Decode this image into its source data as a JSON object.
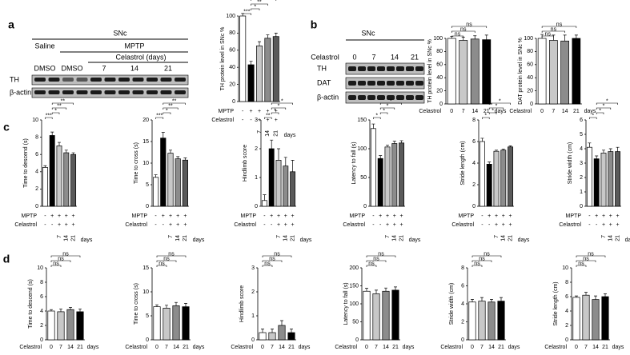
{
  "panel_labels": [
    "a",
    "b",
    "c",
    "d"
  ],
  "blot_a": {
    "header": [
      "Saline",
      "SNc",
      "MPTP",
      "DMSO",
      "DMSO",
      "Celastrol (days)",
      "7",
      "14",
      "21"
    ],
    "rows": [
      "TH",
      "β-actin"
    ]
  },
  "blot_b": {
    "header": [
      "SNc",
      "Celastrol",
      "0",
      "7",
      "14",
      "21"
    ],
    "rows": [
      "TH",
      "DAT",
      "β-actin"
    ]
  },
  "chart_data": [
    {
      "type": "bar",
      "ylabel": "TH protein level in SNc %",
      "values": [
        100,
        43,
        65,
        74,
        76
      ],
      "errors": [
        3,
        4,
        5,
        4,
        4
      ],
      "colors": [
        "#ffffff",
        "#000000",
        "#c8c8c8",
        "#8c8c8c",
        "#5a5a5a"
      ],
      "ylim": [
        0,
        100
      ],
      "yticks": [
        0,
        20,
        40,
        60,
        80,
        100
      ],
      "categories": [
        null,
        null,
        "7",
        "14",
        "21"
      ],
      "x_unit": "days",
      "conditions": [
        {
          "name": "MPTP",
          "values": [
            "-",
            "+",
            "+",
            "+",
            "+"
          ]
        },
        {
          "name": "Celastrol",
          "values": [
            "-",
            "-",
            "+",
            "+",
            "+"
          ]
        }
      ],
      "brackets": [
        {
          "from": 0,
          "to": 1,
          "label": "***"
        },
        {
          "from": 1,
          "to": 2,
          "label": "*"
        },
        {
          "from": 1,
          "to": 3,
          "label": "**"
        },
        {
          "from": 1,
          "to": 4,
          "label": "**"
        }
      ]
    },
    {
      "type": "bar",
      "ylabel": "TH protein level in SNc %",
      "values": [
        100,
        97,
        99,
        98
      ],
      "errors": [
        3,
        5,
        5,
        7
      ],
      "colors": [
        "#ffffff",
        "#c8c8c8",
        "#8c8c8c",
        "#000000"
      ],
      "ylim": [
        0,
        100
      ],
      "yticks": [
        0,
        20,
        40,
        60,
        80,
        100
      ],
      "categories": [
        "0",
        "7",
        "14",
        "21"
      ],
      "xlabel": "Celastrol",
      "x_unit": "days",
      "brackets": [
        {
          "from": 0,
          "to": 1,
          "label": "ns"
        },
        {
          "from": 0,
          "to": 2,
          "label": "ns"
        },
        {
          "from": 0,
          "to": 3,
          "label": "ns"
        }
      ]
    },
    {
      "type": "bar",
      "ylabel": "DAT protein level in SNc %",
      "values": [
        100,
        97,
        96,
        100
      ],
      "errors": [
        6,
        8,
        9,
        5
      ],
      "colors": [
        "#ffffff",
        "#c8c8c8",
        "#8c8c8c",
        "#000000"
      ],
      "ylim": [
        0,
        100
      ],
      "yticks": [
        0,
        20,
        40,
        60,
        80,
        100
      ],
      "categories": [
        "0",
        "7",
        "14",
        "21"
      ],
      "xlabel": "Celastrol",
      "x_unit": "days",
      "brackets": [
        {
          "from": 0,
          "to": 1,
          "label": "ns"
        },
        {
          "from": 0,
          "to": 2,
          "label": "ns"
        },
        {
          "from": 0,
          "to": 3,
          "label": "ns"
        }
      ]
    },
    {
      "type": "bar",
      "ylabel": "Time to descend (s)",
      "values": [
        4.5,
        8.2,
        7.0,
        6.2,
        6.0
      ],
      "errors": [
        0.2,
        0.4,
        0.4,
        0.3,
        0.2
      ],
      "colors": [
        "#ffffff",
        "#000000",
        "#c8c8c8",
        "#8c8c8c",
        "#5a5a5a"
      ],
      "ylim": [
        0,
        10
      ],
      "yticks": [
        0,
        2,
        4,
        6,
        8,
        10
      ],
      "categories": [
        null,
        null,
        "7",
        "14",
        "21"
      ],
      "x_unit": "days",
      "conditions": [
        {
          "name": "MPTP",
          "values": [
            "-",
            "+",
            "+",
            "+",
            "+"
          ]
        },
        {
          "name": "Celastrol",
          "values": [
            "-",
            "-",
            "+",
            "+",
            "+"
          ]
        }
      ],
      "brackets": [
        {
          "from": 0,
          "to": 1,
          "label": "***"
        },
        {
          "from": 1,
          "to": 2,
          "label": "*"
        },
        {
          "from": 1,
          "to": 3,
          "label": "**"
        },
        {
          "from": 1,
          "to": 4,
          "label": "**"
        }
      ]
    },
    {
      "type": "bar",
      "ylabel": "Time to cross (s)",
      "values": [
        6.7,
        15.8,
        12.3,
        11.0,
        10.7
      ],
      "errors": [
        0.6,
        1.3,
        0.7,
        0.5,
        0.5
      ],
      "colors": [
        "#ffffff",
        "#000000",
        "#c8c8c8",
        "#8c8c8c",
        "#5a5a5a"
      ],
      "ylim": [
        0,
        20
      ],
      "yticks": [
        0,
        5,
        10,
        15,
        20
      ],
      "categories": [
        null,
        null,
        "7",
        "14",
        "21"
      ],
      "x_unit": "days",
      "conditions": [
        {
          "name": "MPTP",
          "values": [
            "-",
            "+",
            "+",
            "+",
            "+"
          ]
        },
        {
          "name": "Celastrol",
          "values": [
            "-",
            "-",
            "+",
            "+",
            "+"
          ]
        }
      ],
      "brackets": [
        {
          "from": 0,
          "to": 1,
          "label": "***"
        },
        {
          "from": 1,
          "to": 2,
          "label": "*"
        },
        {
          "from": 1,
          "to": 3,
          "label": "**"
        },
        {
          "from": 1,
          "to": 4,
          "label": "**"
        }
      ]
    },
    {
      "type": "bar",
      "ylabel": "Hindlimb score",
      "values": [
        0.2,
        2.0,
        1.6,
        1.4,
        1.2
      ],
      "errors": [
        0.2,
        0.3,
        0.4,
        0.3,
        0.4
      ],
      "colors": [
        "#ffffff",
        "#000000",
        "#c8c8c8",
        "#8c8c8c",
        "#5a5a5a"
      ],
      "ylim": [
        0,
        3
      ],
      "yticks": [
        0,
        1,
        2,
        3
      ],
      "categories": [
        null,
        null,
        "7",
        "14",
        "21"
      ],
      "x_unit": "days",
      "conditions": [
        {
          "name": "MPTP",
          "values": [
            "-",
            "+",
            "+",
            "+",
            "+"
          ]
        },
        {
          "name": "Celastrol",
          "values": [
            "-",
            "-",
            "+",
            "+",
            "+"
          ]
        }
      ],
      "brackets": [
        {
          "from": 0,
          "to": 1,
          "label": "**"
        },
        {
          "from": 1,
          "to": 2,
          "label": "*"
        },
        {
          "from": 1,
          "to": 3,
          "label": "*"
        },
        {
          "from": 1,
          "to": 4,
          "label": "*"
        }
      ]
    },
    {
      "type": "bar",
      "ylabel": "Latency to fall (s)",
      "values": [
        135,
        83,
        103,
        109,
        110
      ],
      "errors": [
        8,
        5,
        3,
        4,
        4
      ],
      "colors": [
        "#ffffff",
        "#000000",
        "#c8c8c8",
        "#8c8c8c",
        "#5a5a5a"
      ],
      "ylim": [
        0,
        150
      ],
      "yticks": [
        0,
        50,
        100,
        150
      ],
      "categories": [
        null,
        null,
        "7",
        "14",
        "21"
      ],
      "x_unit": "days",
      "conditions": [
        {
          "name": "MPTP",
          "values": [
            "-",
            "+",
            "+",
            "+",
            "+"
          ]
        },
        {
          "name": "Celastrol",
          "values": [
            "-",
            "-",
            "+",
            "+",
            "+"
          ]
        }
      ],
      "brackets": [
        {
          "from": 0,
          "to": 1,
          "label": "*"
        },
        {
          "from": 1,
          "to": 2,
          "label": "*"
        },
        {
          "from": 1,
          "to": 3,
          "label": "*"
        },
        {
          "from": 1,
          "to": 4,
          "label": "*"
        }
      ]
    },
    {
      "type": "bar",
      "ylabel": "Stride length (cm)",
      "values": [
        6.0,
        3.9,
        5.1,
        5.2,
        5.5
      ],
      "errors": [
        0.3,
        0.2,
        0.1,
        0.1,
        0.1
      ],
      "colors": [
        "#ffffff",
        "#000000",
        "#c8c8c8",
        "#8c8c8c",
        "#5a5a5a"
      ],
      "ylim": [
        0,
        8
      ],
      "yticks": [
        0,
        2,
        4,
        6,
        8
      ],
      "categories": [
        null,
        null,
        "7",
        "14",
        "21"
      ],
      "x_unit": "days",
      "conditions": [
        {
          "name": "MPTP",
          "values": [
            "-",
            "+",
            "+",
            "+",
            "+"
          ]
        },
        {
          "name": "Celastrol",
          "values": [
            "-",
            "-",
            "+",
            "+",
            "+"
          ]
        }
      ],
      "brackets": [
        {
          "from": 0,
          "to": 1,
          "label": "*"
        },
        {
          "from": 1,
          "to": 2,
          "label": "*"
        },
        {
          "from": 1,
          "to": 3,
          "label": "*"
        },
        {
          "from": 1,
          "to": 4,
          "label": "*"
        }
      ]
    },
    {
      "type": "bar",
      "ylabel": "Stride width (cm)",
      "values": [
        4.1,
        3.3,
        3.7,
        3.8,
        3.8
      ],
      "errors": [
        0.3,
        0.2,
        0.2,
        0.2,
        0.3
      ],
      "colors": [
        "#ffffff",
        "#000000",
        "#c8c8c8",
        "#8c8c8c",
        "#5a5a5a"
      ],
      "ylim": [
        0,
        6
      ],
      "yticks": [
        0,
        1,
        2,
        3,
        4,
        5,
        6
      ],
      "categories": [
        null,
        null,
        "7",
        "14",
        "21"
      ],
      "x_unit": "days",
      "conditions": [
        {
          "name": "MPTP",
          "values": [
            "-",
            "+",
            "+",
            "+",
            "+"
          ]
        },
        {
          "name": "Celastrol",
          "values": [
            "-",
            "-",
            "+",
            "+",
            "+"
          ]
        }
      ],
      "brackets": [
        {
          "from": 0,
          "to": 1,
          "label": "*"
        },
        {
          "from": 1,
          "to": 2,
          "label": "*"
        },
        {
          "from": 1,
          "to": 3,
          "label": "*"
        },
        {
          "from": 1,
          "to": 4,
          "label": "*"
        }
      ]
    },
    {
      "type": "bar",
      "ylabel": "Time to descend (s)",
      "values": [
        4.0,
        3.9,
        4.2,
        3.9
      ],
      "errors": [
        0.2,
        0.4,
        0.3,
        0.4
      ],
      "colors": [
        "#ffffff",
        "#c8c8c8",
        "#8c8c8c",
        "#000000"
      ],
      "ylim": [
        0,
        10
      ],
      "yticks": [
        0,
        2,
        4,
        6,
        8,
        10
      ],
      "categories": [
        "0",
        "7",
        "14",
        "21"
      ],
      "xlabel": "Celastrol",
      "x_unit": "days",
      "brackets": [
        {
          "from": 0,
          "to": 1,
          "label": "ns"
        },
        {
          "from": 0,
          "to": 2,
          "label": "ns"
        },
        {
          "from": 0,
          "to": 3,
          "label": "ns"
        }
      ]
    },
    {
      "type": "bar",
      "ylabel": "Time to cross (s)",
      "values": [
        6.9,
        6.6,
        7.1,
        6.9
      ],
      "errors": [
        0.4,
        0.6,
        0.7,
        0.7
      ],
      "colors": [
        "#ffffff",
        "#c8c8c8",
        "#8c8c8c",
        "#000000"
      ],
      "ylim": [
        0,
        15
      ],
      "yticks": [
        0,
        5,
        10,
        15
      ],
      "categories": [
        "0",
        "7",
        "14",
        "21"
      ],
      "xlabel": "Celastrol",
      "x_unit": "days",
      "brackets": [
        {
          "from": 0,
          "to": 1,
          "label": "ns"
        },
        {
          "from": 0,
          "to": 2,
          "label": "ns"
        },
        {
          "from": 0,
          "to": 3,
          "label": "ns"
        }
      ]
    },
    {
      "type": "bar",
      "ylabel": "Hindlimb score",
      "values": [
        0.3,
        0.3,
        0.6,
        0.3
      ],
      "errors": [
        0.15,
        0.15,
        0.2,
        0.15
      ],
      "colors": [
        "#ffffff",
        "#c8c8c8",
        "#8c8c8c",
        "#000000"
      ],
      "ylim": [
        0,
        3
      ],
      "yticks": [
        0,
        1,
        2,
        3
      ],
      "categories": [
        "0",
        "7",
        "14",
        "21"
      ],
      "xlabel": "Celastrol",
      "x_unit": "days",
      "brackets": [
        {
          "from": 0,
          "to": 1,
          "label": "ns"
        },
        {
          "from": 0,
          "to": 2,
          "label": "ns"
        },
        {
          "from": 0,
          "to": 3,
          "label": "ns"
        }
      ]
    },
    {
      "type": "bar",
      "ylabel": "Latency to fall (s)",
      "values": [
        135,
        128,
        135,
        138
      ],
      "errors": [
        8,
        10,
        9,
        9
      ],
      "colors": [
        "#ffffff",
        "#c8c8c8",
        "#8c8c8c",
        "#000000"
      ],
      "ylim": [
        0,
        200
      ],
      "yticks": [
        0,
        50,
        100,
        150,
        200
      ],
      "categories": [
        "0",
        "7",
        "14",
        "21"
      ],
      "xlabel": "Celastrol",
      "x_unit": "days",
      "brackets": [
        {
          "from": 0,
          "to": 1,
          "label": "ns"
        },
        {
          "from": 0,
          "to": 2,
          "label": "ns"
        },
        {
          "from": 0,
          "to": 3,
          "label": "ns"
        }
      ]
    },
    {
      "type": "bar",
      "ylabel": "Stride width (cm)",
      "values": [
        4.2,
        4.3,
        4.2,
        4.3
      ],
      "errors": [
        0.3,
        0.4,
        0.3,
        0.4
      ],
      "colors": [
        "#ffffff",
        "#c8c8c8",
        "#8c8c8c",
        "#000000"
      ],
      "ylim": [
        0,
        8
      ],
      "yticks": [
        0,
        2,
        4,
        6,
        8
      ],
      "categories": [
        "0",
        "7",
        "14",
        "21"
      ],
      "xlabel": "Celastrol",
      "x_unit": "days",
      "brackets": [
        {
          "from": 0,
          "to": 1,
          "label": "ns"
        },
        {
          "from": 0,
          "to": 2,
          "label": "ns"
        },
        {
          "from": 0,
          "to": 3,
          "label": "ns"
        }
      ]
    },
    {
      "type": "bar",
      "ylabel": "Stride length (cm)",
      "values": [
        5.9,
        6.2,
        5.6,
        6.0
      ],
      "errors": [
        0.2,
        0.4,
        0.5,
        0.4
      ],
      "colors": [
        "#ffffff",
        "#c8c8c8",
        "#8c8c8c",
        "#000000"
      ],
      "ylim": [
        0,
        10
      ],
      "yticks": [
        0,
        2,
        4,
        6,
        8,
        10
      ],
      "categories": [
        "0",
        "7",
        "14",
        "21"
      ],
      "xlabel": "Celastrol",
      "x_unit": "days",
      "brackets": [
        {
          "from": 0,
          "to": 1,
          "label": "ns"
        },
        {
          "from": 0,
          "to": 2,
          "label": "ns"
        },
        {
          "from": 0,
          "to": 3,
          "label": "ns"
        }
      ]
    }
  ]
}
